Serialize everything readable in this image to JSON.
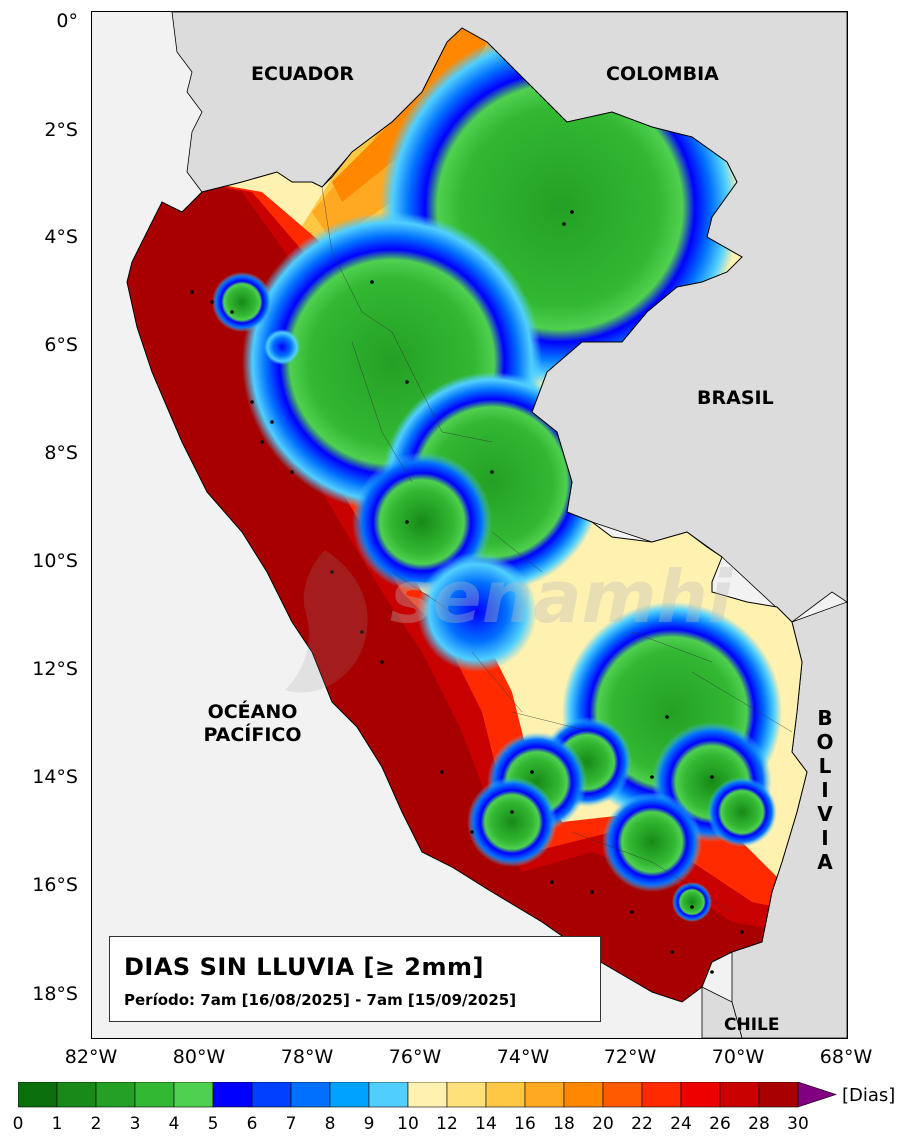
{
  "map": {
    "title": "DIAS SIN LLUVIA [≥ 2mm]",
    "period": "Período: 7am [16/08/2025] - 7am [15/09/2025]",
    "labels": {
      "ecuador": "ECUADOR",
      "colombia": "COLOMBIA",
      "brasil": "BRASIL",
      "ocean_line1": "OCÉANO",
      "ocean_line2": "PACÍFICO",
      "chile": "CHILE",
      "bolivia_letters": [
        "B",
        "O",
        "L",
        "I",
        "V",
        "I",
        "A"
      ]
    },
    "watermark": "senamhi",
    "lat_ticks": [
      "0°",
      "2°S",
      "4°S",
      "6°S",
      "8°S",
      "10°S",
      "12°S",
      "14°S",
      "16°S",
      "18°S"
    ],
    "lon_ticks": [
      "82°W",
      "80°W",
      "78°W",
      "76°W",
      "74°W",
      "72°W",
      "70°W",
      "68°W"
    ]
  },
  "colorbar": {
    "unit": "[Dias]",
    "ticks": [
      "0",
      "1",
      "2",
      "3",
      "4",
      "5",
      "6",
      "7",
      "8",
      "9",
      "10",
      "12",
      "14",
      "16",
      "18",
      "20",
      "22",
      "24",
      "26",
      "28",
      "30"
    ],
    "colors": [
      "#0a6e0a",
      "#178a17",
      "#24a024",
      "#33b833",
      "#4fd04f",
      "#0000ff",
      "#0040ff",
      "#0070ff",
      "#00a2ff",
      "#50cfff",
      "#fff2b0",
      "#ffe07a",
      "#ffc844",
      "#ffa822",
      "#ff8800",
      "#ff5a00",
      "#ff2a00",
      "#ee0000",
      "#c80000",
      "#a80000"
    ],
    "extend_color": "#800080"
  }
}
